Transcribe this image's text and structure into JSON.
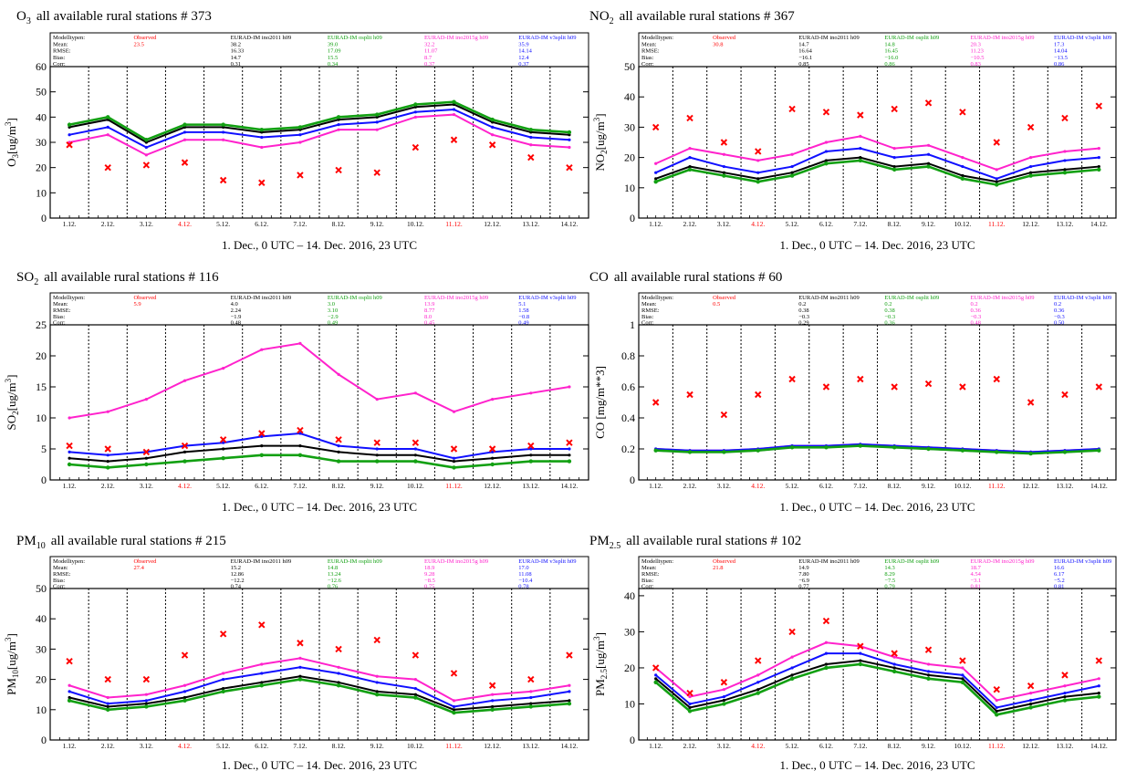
{
  "colors": {
    "observed": "#ff0000",
    "ino2011": "#000000",
    "osplit": "#12a012",
    "ino2015": "#ff22cc",
    "v3split": "#1010ff",
    "holiday": "#ff0000",
    "text": "#000000"
  },
  "stats_header": {
    "row_labels": [
      "Modelltypen:",
      "Mean:",
      "RMSE:",
      "Bias:",
      "Corr:"
    ],
    "models": [
      {
        "name": "Observed",
        "color_key": "observed"
      },
      {
        "name": "EURAD-IM ino2011 h09",
        "color_key": "ino2011"
      },
      {
        "name": "EURAD-IM osplit h09",
        "color_key": "osplit"
      },
      {
        "name": "EURAD-IM ino2015g h09",
        "color_key": "ino2015"
      },
      {
        "name": "EURAD-IM v3split h09",
        "color_key": "v3split"
      }
    ]
  },
  "date_labels": [
    "1.12.",
    "2.12.",
    "3.12.",
    "4.12.",
    "5.12.",
    "6.12.",
    "7.12.",
    "8.12.",
    "9.12.",
    "10.12.",
    "11.12.",
    "12.12.",
    "13.12.",
    "14.12."
  ],
  "holiday_dates": [
    "4.12.",
    "11.12."
  ],
  "x_axis_title": "1. Dec., 0 UTC – 14. Dec. 2016, 23 UTC",
  "chart_data": [
    {
      "type": "line",
      "species": "O3",
      "title_main": "O",
      "title_sub": "3",
      "title_rest": "all available rural stations # 373",
      "ylabel_main": "O",
      "ylabel_sub": "3",
      "ylabel_unit": "[ug/m",
      "ylabel_sup": "3",
      "ylabel_end": "]",
      "ylim": [
        0,
        60
      ],
      "yticks": [
        0,
        10,
        20,
        30,
        40,
        50,
        60
      ],
      "stats": {
        "observed": [
          "23.5",
          "",
          "",
          ""
        ],
        "ino2011": [
          "38.2",
          "16.33",
          "14.7",
          "0.31"
        ],
        "osplit": [
          "39.0",
          "17.09",
          "15.5",
          "0.34"
        ],
        "ino2015": [
          "32.2",
          "11.07",
          "8.7",
          "0.37"
        ],
        "v3split": [
          "35.9",
          "14.14",
          "12.4",
          "0.37"
        ]
      },
      "series": [
        {
          "name": "Observed",
          "color_key": "observed",
          "marker": true,
          "values": [
            29,
            20,
            21,
            22,
            15,
            14,
            17,
            19,
            18,
            28,
            31,
            29,
            24,
            20
          ]
        },
        {
          "name": "EURAD-IM ino2011 h09",
          "color_key": "ino2011",
          "marker": false,
          "values": [
            36,
            39,
            30,
            36,
            36,
            34,
            35,
            39,
            40,
            44,
            45,
            38,
            34,
            33
          ]
        },
        {
          "name": "EURAD-IM osplit h09",
          "color_key": "osplit",
          "marker": true,
          "values": [
            37,
            40,
            31,
            37,
            37,
            35,
            36,
            40,
            41,
            45,
            46,
            39,
            35,
            34
          ]
        },
        {
          "name": "EURAD-IM ino2015g h09",
          "color_key": "ino2015",
          "marker": false,
          "values": [
            30,
            33,
            25,
            31,
            31,
            28,
            30,
            35,
            35,
            40,
            41,
            33,
            29,
            28
          ]
        },
        {
          "name": "EURAD-IM v3split h09",
          "color_key": "v3split",
          "marker": false,
          "values": [
            33,
            36,
            28,
            34,
            34,
            32,
            33,
            37,
            38,
            42,
            43,
            36,
            32,
            31
          ]
        }
      ]
    },
    {
      "type": "line",
      "species": "NO2",
      "title_main": "NO",
      "title_sub": "2",
      "title_rest": "all available rural stations # 367",
      "ylabel_main": "NO",
      "ylabel_sub": "2",
      "ylabel_unit": "[ug/m",
      "ylabel_sup": "3",
      "ylabel_end": "]",
      "ylim": [
        0,
        50
      ],
      "yticks": [
        0,
        10,
        20,
        30,
        40,
        50
      ],
      "stats": {
        "observed": [
          "30.8",
          "",
          "",
          ""
        ],
        "ino2011": [
          "14.7",
          "16.64",
          "−16.1",
          "0.85"
        ],
        "osplit": [
          "14.8",
          "16.45",
          "−16.0",
          "0.86"
        ],
        "ino2015": [
          "20.3",
          "11.23",
          "−10.5",
          "0.83"
        ],
        "v3split": [
          "17.3",
          "14.04",
          "−13.5",
          "0.86"
        ]
      },
      "series": [
        {
          "name": "Observed",
          "color_key": "observed",
          "marker": true,
          "values": [
            30,
            33,
            25,
            22,
            36,
            35,
            34,
            36,
            38,
            35,
            25,
            30,
            33,
            37
          ]
        },
        {
          "name": "EURAD-IM ino2011 h09",
          "color_key": "ino2011",
          "marker": false,
          "values": [
            13,
            17,
            15,
            13,
            15,
            19,
            20,
            17,
            18,
            14,
            12,
            15,
            16,
            17
          ]
        },
        {
          "name": "EURAD-IM osplit h09",
          "color_key": "osplit",
          "marker": true,
          "values": [
            12,
            16,
            14,
            12,
            14,
            18,
            19,
            16,
            17,
            13,
            11,
            14,
            15,
            16
          ]
        },
        {
          "name": "EURAD-IM ino2015g h09",
          "color_key": "ino2015",
          "marker": false,
          "values": [
            18,
            23,
            21,
            19,
            21,
            25,
            27,
            23,
            24,
            20,
            16,
            20,
            22,
            23
          ]
        },
        {
          "name": "EURAD-IM v3split h09",
          "color_key": "v3split",
          "marker": false,
          "values": [
            15,
            20,
            17,
            15,
            17,
            22,
            23,
            20,
            21,
            17,
            13,
            17,
            19,
            20
          ]
        }
      ]
    },
    {
      "type": "line",
      "species": "SO2",
      "title_main": "SO",
      "title_sub": "2",
      "title_rest": "all available rural stations # 116",
      "ylabel_main": "SO",
      "ylabel_sub": "2",
      "ylabel_unit": "[ug/m",
      "ylabel_sup": "3",
      "ylabel_end": "]",
      "ylim": [
        0,
        25
      ],
      "yticks": [
        0,
        5,
        10,
        15,
        20,
        25
      ],
      "stats": {
        "observed": [
          "5.9",
          "",
          "",
          ""
        ],
        "ino2011": [
          "4.0",
          "2.24",
          "−1.9",
          "0.48"
        ],
        "osplit": [
          "3.0",
          "3.10",
          "−2.9",
          "0.49"
        ],
        "ino2015": [
          "13.9",
          "8.77",
          "8.0",
          "0.45"
        ],
        "v3split": [
          "5.1",
          "1.58",
          "−0.8",
          "0.49"
        ]
      },
      "series": [
        {
          "name": "Observed",
          "color_key": "observed",
          "marker": true,
          "values": [
            5.5,
            5.0,
            4.5,
            5.5,
            6.5,
            7.5,
            8.0,
            6.5,
            6.0,
            6.0,
            5.0,
            5.0,
            5.5,
            6.0
          ]
        },
        {
          "name": "EURAD-IM ino2011 h09",
          "color_key": "ino2011",
          "marker": false,
          "values": [
            3.5,
            3.0,
            3.5,
            4.5,
            5.0,
            5.5,
            5.5,
            4.5,
            4.0,
            4.0,
            3.0,
            3.5,
            4.0,
            4.0
          ]
        },
        {
          "name": "EURAD-IM osplit h09",
          "color_key": "osplit",
          "marker": true,
          "values": [
            2.5,
            2.0,
            2.5,
            3.0,
            3.5,
            4.0,
            4.0,
            3.0,
            3.0,
            3.0,
            2.0,
            2.5,
            3.0,
            3.0
          ]
        },
        {
          "name": "EURAD-IM ino2015g h09",
          "color_key": "ino2015",
          "marker": false,
          "values": [
            10,
            11,
            13,
            16,
            18,
            21,
            22,
            17,
            13,
            14,
            11,
            13,
            14,
            15
          ]
        },
        {
          "name": "EURAD-IM v3split h09",
          "color_key": "v3split",
          "marker": false,
          "values": [
            4.5,
            4.0,
            4.5,
            5.5,
            6.0,
            7.0,
            7.5,
            5.5,
            5.0,
            5.0,
            3.5,
            4.5,
            5.0,
            5.0
          ]
        }
      ]
    },
    {
      "type": "line",
      "species": "CO",
      "title_main": "CO",
      "title_sub": "",
      "title_rest": "all available rural stations # 60",
      "ylabel_main": "CO [mg/m**3]",
      "ylabel_sub": "",
      "ylabel_unit": "",
      "ylabel_sup": "",
      "ylabel_end": "",
      "ylim": [
        0,
        1.0
      ],
      "yticks": [
        0.0,
        0.2,
        0.4,
        0.6,
        0.8,
        1.0
      ],
      "stats": {
        "observed": [
          "0.5",
          "",
          "",
          ""
        ],
        "ino2011": [
          "0.2",
          "0.38",
          "−0.3",
          "0.29"
        ],
        "osplit": [
          "0.2",
          "0.38",
          "−0.3",
          "0.36"
        ],
        "ino2015": [
          "0.2",
          "0.36",
          "−0.3",
          "0.48"
        ],
        "v3split": [
          "0.2",
          "0.36",
          "−0.3",
          "0.50"
        ]
      },
      "series": [
        {
          "name": "Observed",
          "color_key": "observed",
          "marker": true,
          "values": [
            0.5,
            0.55,
            0.42,
            0.55,
            0.65,
            0.6,
            0.65,
            0.6,
            0.62,
            0.6,
            0.65,
            0.5,
            0.55,
            0.6
          ]
        },
        {
          "name": "EURAD-IM ino2011 h09",
          "color_key": "ino2011",
          "marker": false,
          "values": [
            0.19,
            0.18,
            0.18,
            0.19,
            0.21,
            0.21,
            0.22,
            0.21,
            0.2,
            0.19,
            0.18,
            0.17,
            0.18,
            0.19
          ]
        },
        {
          "name": "EURAD-IM osplit h09",
          "color_key": "osplit",
          "marker": true,
          "values": [
            0.19,
            0.18,
            0.18,
            0.19,
            0.21,
            0.21,
            0.22,
            0.21,
            0.2,
            0.19,
            0.18,
            0.17,
            0.18,
            0.19
          ]
        },
        {
          "name": "EURAD-IM ino2015g h09",
          "color_key": "ino2015",
          "marker": false,
          "values": [
            0.2,
            0.19,
            0.19,
            0.2,
            0.22,
            0.22,
            0.23,
            0.22,
            0.21,
            0.2,
            0.19,
            0.18,
            0.19,
            0.2
          ]
        },
        {
          "name": "EURAD-IM v3split h09",
          "color_key": "v3split",
          "marker": false,
          "values": [
            0.2,
            0.19,
            0.19,
            0.2,
            0.22,
            0.22,
            0.23,
            0.22,
            0.21,
            0.2,
            0.19,
            0.18,
            0.19,
            0.2
          ]
        }
      ]
    },
    {
      "type": "line",
      "species": "PM10",
      "title_main": "PM",
      "title_sub": "10",
      "title_rest": "all available rural stations # 215",
      "ylabel_main": "PM",
      "ylabel_sub": "10",
      "ylabel_unit": "[ug/m",
      "ylabel_sup": "3",
      "ylabel_end": "]",
      "ylim": [
        0,
        50
      ],
      "yticks": [
        0,
        10,
        20,
        30,
        40,
        50
      ],
      "stats": {
        "observed": [
          "27.4",
          "",
          "",
          ""
        ],
        "ino2011": [
          "15.2",
          "12.86",
          "−12.2",
          "0.74"
        ],
        "osplit": [
          "14.8",
          "13.24",
          "−12.6",
          "0.76"
        ],
        "ino2015": [
          "18.9",
          "9.28",
          "−8.5",
          "0.75"
        ],
        "v3split": [
          "17.0",
          "11.08",
          "−10.4",
          "0.78"
        ]
      },
      "series": [
        {
          "name": "Observed",
          "color_key": "observed",
          "marker": true,
          "values": [
            26,
            20,
            20,
            28,
            35,
            38,
            32,
            30,
            33,
            28,
            22,
            18,
            20,
            28
          ]
        },
        {
          "name": "EURAD-IM ino2011 h09",
          "color_key": "ino2011",
          "marker": false,
          "values": [
            14,
            11,
            12,
            14,
            17,
            19,
            21,
            19,
            16,
            15,
            10,
            11,
            12,
            13
          ]
        },
        {
          "name": "EURAD-IM osplit h09",
          "color_key": "osplit",
          "marker": true,
          "values": [
            13,
            10,
            11,
            13,
            16,
            18,
            20,
            18,
            15,
            14,
            9,
            10,
            11,
            12
          ]
        },
        {
          "name": "EURAD-IM ino2015g h09",
          "color_key": "ino2015",
          "marker": false,
          "values": [
            18,
            14,
            15,
            18,
            22,
            25,
            27,
            24,
            21,
            20,
            13,
            15,
            16,
            18
          ]
        },
        {
          "name": "EURAD-IM v3split h09",
          "color_key": "v3split",
          "marker": false,
          "values": [
            16,
            12,
            13,
            16,
            20,
            22,
            24,
            22,
            19,
            17,
            11,
            13,
            14,
            16
          ]
        }
      ]
    },
    {
      "type": "line",
      "species": "PM2.5",
      "title_main": "PM",
      "title_sub": "2.5",
      "title_rest": "all available rural stations # 102",
      "ylabel_main": "PM",
      "ylabel_sub": "2.5",
      "ylabel_unit": "[ug/m",
      "ylabel_sup": "3",
      "ylabel_end": "]",
      "ylim": [
        0,
        42
      ],
      "yticks": [
        0,
        10,
        20,
        30,
        40
      ],
      "stats": {
        "observed": [
          "21.8",
          "",
          "",
          ""
        ],
        "ino2011": [
          "14.9",
          "7.80",
          "−6.9",
          "0.77"
        ],
        "osplit": [
          "14.3",
          "8.29",
          "−7.5",
          "0.79"
        ],
        "ino2015": [
          "18.7",
          "4.54",
          "−3.1",
          "0.81"
        ],
        "v3split": [
          "16.6",
          "6.17",
          "−5.2",
          "0.81"
        ]
      },
      "series": [
        {
          "name": "Observed",
          "color_key": "observed",
          "marker": true,
          "values": [
            20,
            13,
            16,
            22,
            30,
            33,
            26,
            24,
            25,
            22,
            14,
            15,
            18,
            22
          ]
        },
        {
          "name": "EURAD-IM ino2011 h09",
          "color_key": "ino2011",
          "marker": false,
          "values": [
            17,
            9,
            11,
            14,
            18,
            21,
            22,
            20,
            18,
            17,
            8,
            10,
            12,
            13
          ]
        },
        {
          "name": "EURAD-IM osplit h09",
          "color_key": "osplit",
          "marker": true,
          "values": [
            16,
            8,
            10,
            13,
            17,
            20,
            21,
            19,
            17,
            16,
            7,
            9,
            11,
            12
          ]
        },
        {
          "name": "EURAD-IM ino2015g h09",
          "color_key": "ino2015",
          "marker": false,
          "values": [
            20,
            12,
            14,
            18,
            23,
            27,
            26,
            23,
            21,
            20,
            11,
            13,
            15,
            17
          ]
        },
        {
          "name": "EURAD-IM v3split h09",
          "color_key": "v3split",
          "marker": false,
          "values": [
            18,
            10,
            12,
            16,
            20,
            24,
            24,
            21,
            19,
            18,
            9,
            11,
            13,
            15
          ]
        }
      ]
    }
  ]
}
